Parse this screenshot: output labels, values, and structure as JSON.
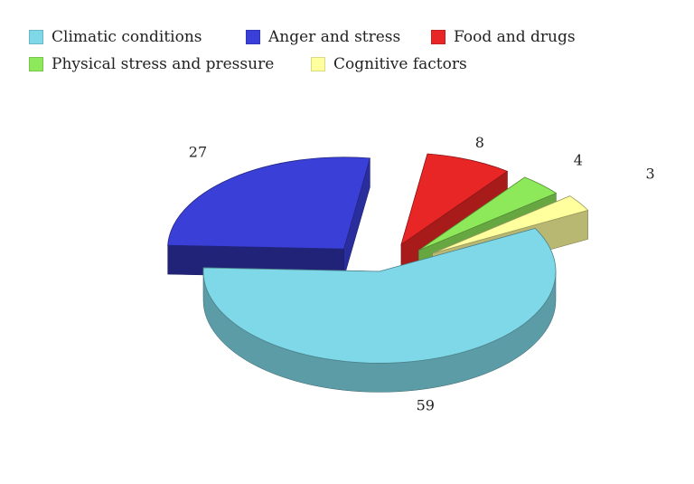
{
  "chart_data": {
    "type": "pie",
    "categories": [
      "Climatic conditions",
      "Anger and stress",
      "Food and drugs",
      "Physical stress and pressure",
      "Cognitive factors"
    ],
    "values": [
      59,
      27,
      8,
      4,
      3
    ],
    "colors": [
      "#7fd8e8",
      "#3a3fd8",
      "#e82626",
      "#8de85a",
      "#ffff9e"
    ],
    "title": "",
    "legend": "top",
    "exploded": true,
    "style": "3d"
  }
}
